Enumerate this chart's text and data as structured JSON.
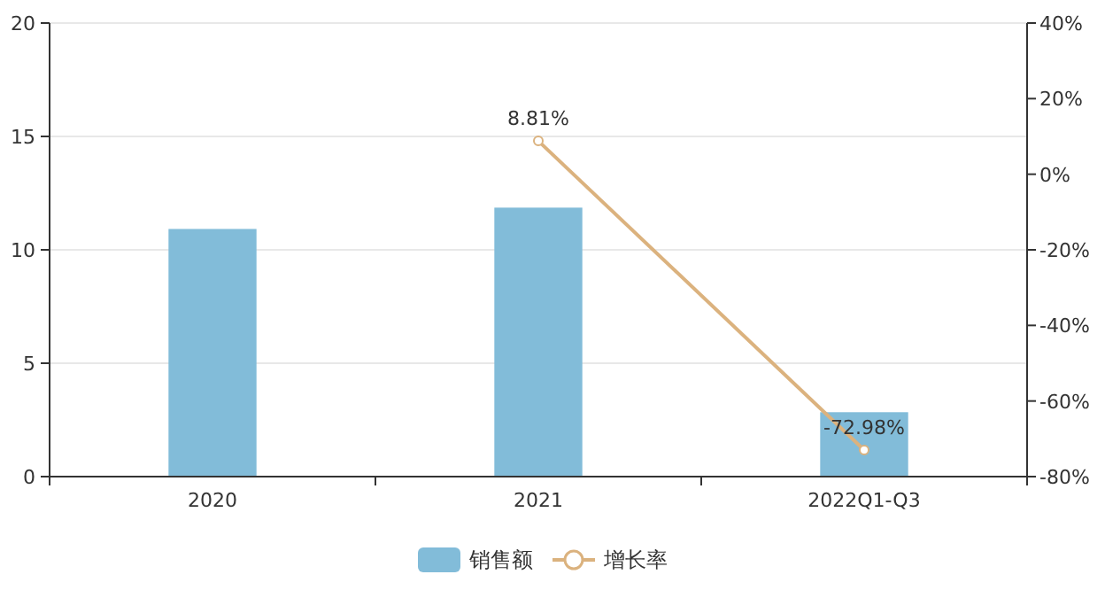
{
  "chart_data": {
    "type": "bar",
    "categories": [
      "2020",
      "2021",
      "2022Q1-Q3"
    ],
    "series": [
      {
        "name": "销售额",
        "color": "#82bcd9",
        "values": [
          10.92,
          11.86,
          2.84
        ]
      },
      {
        "name": "增长率",
        "type": "line",
        "axis": "y2",
        "color": "#dbb27e",
        "marker": "circle",
        "values": [
          null,
          8.81,
          -72.98
        ],
        "value_labels": [
          null,
          "8.81%",
          "-72.98%"
        ]
      }
    ],
    "ylim": [
      0,
      20
    ],
    "yticks": [
      0,
      5,
      10,
      15,
      20
    ],
    "y2lim": [
      -80,
      40
    ],
    "y2ticks": [
      {
        "value": -80,
        "label": "-80%"
      },
      {
        "value": -60,
        "label": "-60%"
      },
      {
        "value": -40,
        "label": "-40%"
      },
      {
        "value": -20,
        "label": "-20%"
      },
      {
        "value": 0,
        "label": "0%"
      },
      {
        "value": 20,
        "label": "20%"
      },
      {
        "value": 40,
        "label": "40%"
      }
    ],
    "grid": "y",
    "legend": "bottom"
  }
}
